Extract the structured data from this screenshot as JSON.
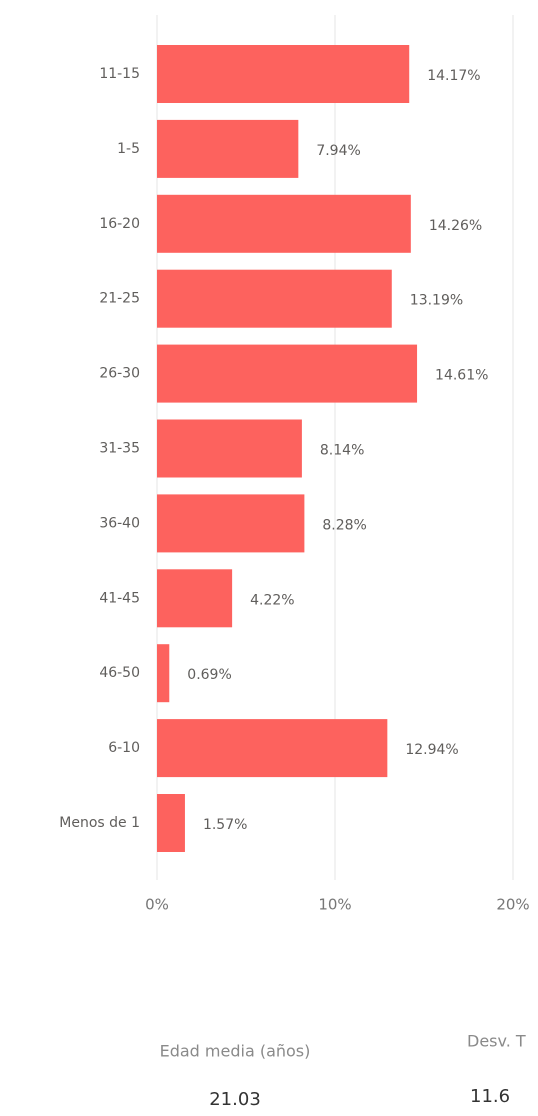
{
  "chart_data": {
    "type": "hbar",
    "categories": [
      "11-15",
      "1-5",
      "16-20",
      "21-25",
      "26-30",
      "31-35",
      "36-40",
      "41-45",
      "46-50",
      "6-10",
      "Menos de 1"
    ],
    "values": [
      14.17,
      7.94,
      14.26,
      13.19,
      14.61,
      8.14,
      8.28,
      4.22,
      0.69,
      12.94,
      1.57
    ],
    "value_labels": [
      "14.17%",
      "7.94%",
      "14.26%",
      "13.19%",
      "14.61%",
      "8.14%",
      "8.28%",
      "4.22%",
      "0.69%",
      "12.94%",
      "1.57%"
    ],
    "color": "#fd625e",
    "xlim": [
      0,
      20
    ],
    "xticks": [
      {
        "value": 0,
        "label": "0%"
      },
      {
        "value": 10,
        "label": "10%"
      },
      {
        "value": 20,
        "label": "20%"
      }
    ],
    "grid": true
  },
  "cards": [
    {
      "label": "Edad media (años)",
      "value": "21.03"
    },
    {
      "label": "Desv. T",
      "value": "11.6"
    }
  ]
}
